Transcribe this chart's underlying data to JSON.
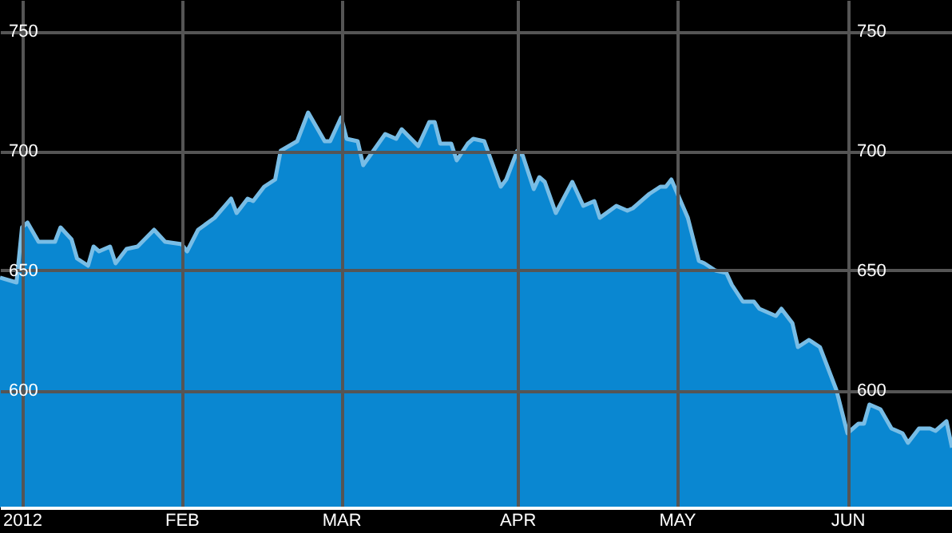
{
  "chart_data": {
    "type": "area",
    "x": [
      "2011-12-30",
      "2012-01-02",
      "2012-01-03",
      "2012-01-04",
      "2012-01-06",
      "2012-01-09",
      "2012-01-10",
      "2012-01-12",
      "2012-01-13",
      "2012-01-15",
      "2012-01-16",
      "2012-01-17",
      "2012-01-19",
      "2012-01-20",
      "2012-01-22",
      "2012-01-24",
      "2012-01-27",
      "2012-01-29",
      "2012-02-01",
      "2012-02-02",
      "2012-02-04",
      "2012-02-07",
      "2012-02-10",
      "2012-02-11",
      "2012-02-13",
      "2012-02-14",
      "2012-02-16",
      "2012-02-18",
      "2012-02-19",
      "2012-02-22",
      "2012-02-24",
      "2012-02-25",
      "2012-02-27",
      "2012-02-28",
      "2012-03-01",
      "2012-03-02",
      "2012-03-04",
      "2012-03-05",
      "2012-03-09",
      "2012-03-11",
      "2012-03-12",
      "2012-03-15",
      "2012-03-17",
      "2012-03-18",
      "2012-03-19",
      "2012-03-21",
      "2012-03-22",
      "2012-03-24",
      "2012-03-25",
      "2012-03-27",
      "2012-03-30",
      "2012-03-31",
      "2012-04-02",
      "2012-04-03",
      "2012-04-05",
      "2012-04-06",
      "2012-04-07",
      "2012-04-09",
      "2012-04-12",
      "2012-04-14",
      "2012-04-16",
      "2012-04-17",
      "2012-04-20",
      "2012-04-22",
      "2012-04-23",
      "2012-04-26",
      "2012-04-28",
      "2012-04-29",
      "2012-04-30",
      "2012-05-03",
      "2012-05-05",
      "2012-05-06",
      "2012-05-08",
      "2012-05-10",
      "2012-05-11",
      "2012-05-13",
      "2012-05-15",
      "2012-05-16",
      "2012-05-19",
      "2012-05-20",
      "2012-05-22",
      "2012-05-23",
      "2012-05-25",
      "2012-05-27",
      "2012-05-30",
      "2012-06-01",
      "2012-06-03",
      "2012-06-04",
      "2012-06-05",
      "2012-06-07",
      "2012-06-09",
      "2012-06-11",
      "2012-06-12",
      "2012-06-14",
      "2012-06-16",
      "2012-06-17",
      "2012-06-19",
      "2012-06-20"
    ],
    "series": [
      {
        "color": "#0a87d1",
        "values": [
          647,
          645,
          668,
          670,
          662,
          662,
          668,
          663,
          655,
          652,
          660,
          658,
          660,
          653,
          659,
          660,
          667,
          662,
          661,
          658,
          667,
          672,
          680,
          674,
          680,
          679,
          685,
          688,
          700,
          704,
          716,
          712,
          704,
          704,
          714,
          705,
          704,
          694,
          707,
          705,
          709,
          702,
          712,
          712,
          703,
          703,
          696,
          703,
          705,
          704,
          685,
          688,
          700,
          698,
          684,
          689,
          687,
          674,
          687,
          677,
          679,
          672,
          677,
          675,
          676,
          682,
          685,
          685,
          688,
          672,
          654,
          653,
          650,
          649,
          644,
          637,
          637,
          634,
          631,
          634,
          628,
          618,
          621,
          618,
          600,
          582,
          586,
          586,
          594,
          592,
          584,
          582,
          578,
          584,
          584,
          583,
          587,
          576
        ]
      }
    ],
    "xlim": [
      "2011-12-30",
      "2012-06-20"
    ],
    "xticks": [
      {
        "value": "2012-01-03",
        "label": "2012"
      },
      {
        "value": "2012-02-01",
        "label": "FEB"
      },
      {
        "value": "2012-03-01",
        "label": "MAR"
      },
      {
        "value": "2012-04-02",
        "label": "APR"
      },
      {
        "value": "2012-05-01",
        "label": "MAY"
      },
      {
        "value": "2012-06-01",
        "label": "JUN"
      }
    ],
    "ylim": [
      551,
      763
    ],
    "yticks": [
      600,
      650,
      700,
      750
    ],
    "y2lim": [
      551,
      763
    ],
    "y2ticks": [
      600,
      650,
      700,
      750
    ],
    "grid": true
  }
}
